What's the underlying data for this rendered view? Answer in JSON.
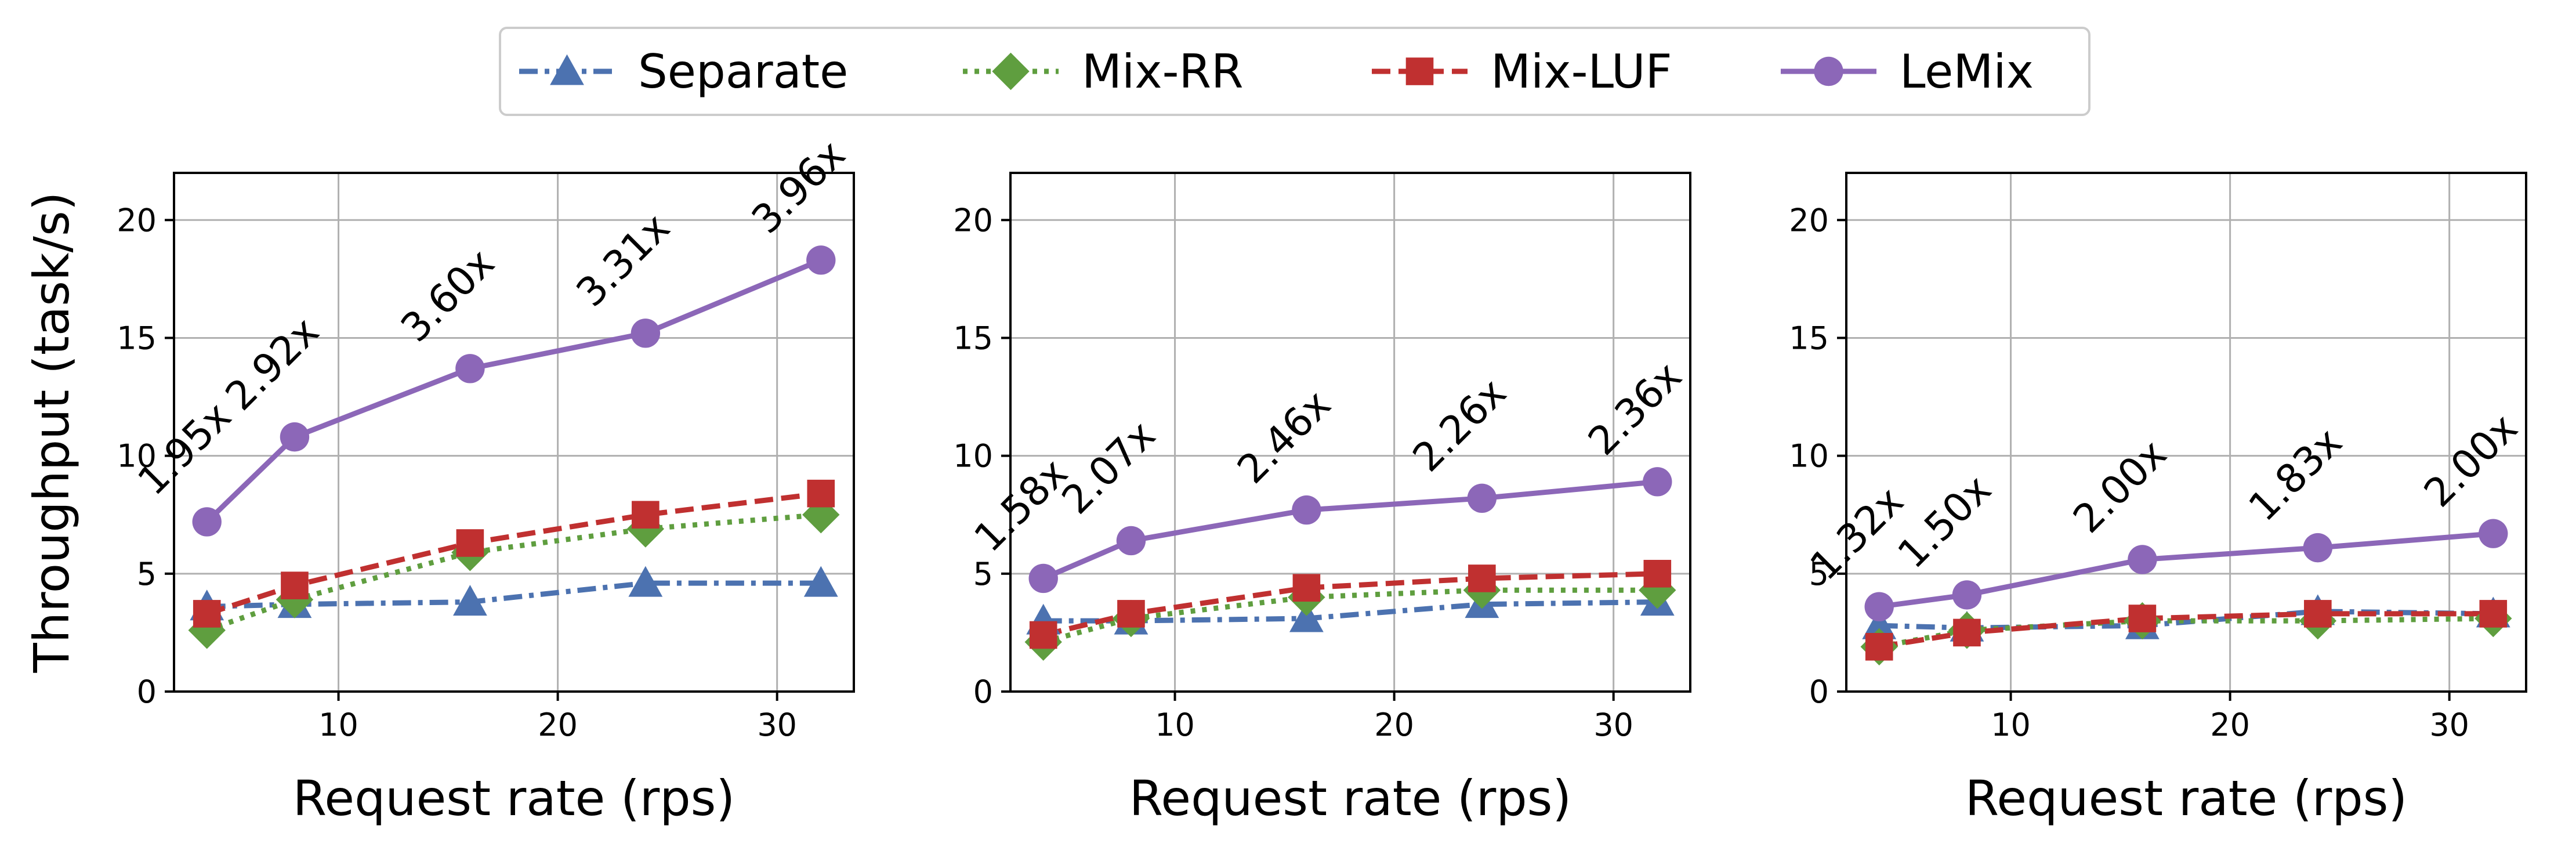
{
  "legend": {
    "entries": [
      {
        "label": "Separate",
        "color": "#4c72b0",
        "marker": "triangle",
        "dash": "dashdot"
      },
      {
        "label": "Mix-RR",
        "color": "#5f9e3f",
        "marker": "diamond",
        "dash": "dotted"
      },
      {
        "label": "Mix-LUF",
        "color": "#c03030",
        "marker": "square",
        "dash": "dashed"
      },
      {
        "label": "LeMix",
        "color": "#8c67b8",
        "marker": "circle",
        "dash": "solid"
      }
    ],
    "placement": "top-center"
  },
  "chart_data": [
    {
      "type": "line",
      "xlabel": "Request rate (rps)",
      "ylabel": "Throughput (task/s)",
      "xlim": [
        2.5,
        33.5
      ],
      "ylim": [
        0,
        22
      ],
      "xticks": [
        10,
        20,
        30
      ],
      "yticks": [
        0,
        5,
        10,
        15,
        20
      ],
      "grid": true,
      "x": [
        4,
        8,
        16,
        24,
        32
      ],
      "series": [
        {
          "name": "Separate",
          "values": [
            3.6,
            3.7,
            3.8,
            4.6,
            4.6
          ]
        },
        {
          "name": "Mix-RR",
          "values": [
            2.6,
            3.9,
            5.9,
            6.9,
            7.5
          ]
        },
        {
          "name": "Mix-LUF",
          "values": [
            3.3,
            4.5,
            6.3,
            7.5,
            8.4
          ]
        },
        {
          "name": "LeMix",
          "values": [
            7.2,
            10.8,
            13.7,
            15.2,
            18.3
          ]
        }
      ],
      "annotations": [
        "1.95x",
        "2.92x",
        "3.60x",
        "3.31x",
        "3.96x"
      ]
    },
    {
      "type": "line",
      "xlabel": "Request rate (rps)",
      "ylabel": "",
      "xlim": [
        2.5,
        33.5
      ],
      "ylim": [
        0,
        22
      ],
      "xticks": [
        10,
        20,
        30
      ],
      "yticks": [
        0,
        5,
        10,
        15,
        20
      ],
      "grid": true,
      "x": [
        4,
        8,
        16,
        24,
        32
      ],
      "series": [
        {
          "name": "Separate",
          "values": [
            3.0,
            3.0,
            3.1,
            3.7,
            3.8
          ]
        },
        {
          "name": "Mix-RR",
          "values": [
            2.1,
            3.1,
            4.0,
            4.3,
            4.3
          ]
        },
        {
          "name": "Mix-LUF",
          "values": [
            2.4,
            3.3,
            4.4,
            4.8,
            5.0
          ]
        },
        {
          "name": "LeMix",
          "values": [
            4.8,
            6.4,
            7.7,
            8.2,
            8.9
          ]
        }
      ],
      "annotations": [
        "1.58x",
        "2.07x",
        "2.46x",
        "2.26x",
        "2.36x"
      ]
    },
    {
      "type": "line",
      "xlabel": "Request rate (rps)",
      "ylabel": "",
      "xlim": [
        2.5,
        33.5
      ],
      "ylim": [
        0,
        22
      ],
      "xticks": [
        10,
        20,
        30
      ],
      "yticks": [
        0,
        5,
        10,
        15,
        20
      ],
      "grid": true,
      "x": [
        4,
        8,
        16,
        24,
        32
      ],
      "series": [
        {
          "name": "Separate",
          "values": [
            2.8,
            2.7,
            2.8,
            3.4,
            3.3
          ]
        },
        {
          "name": "Mix-RR",
          "values": [
            1.9,
            2.6,
            3.0,
            3.0,
            3.1
          ]
        },
        {
          "name": "Mix-LUF",
          "values": [
            1.9,
            2.5,
            3.1,
            3.3,
            3.3
          ]
        },
        {
          "name": "LeMix",
          "values": [
            3.6,
            4.1,
            5.6,
            6.1,
            6.7
          ]
        }
      ],
      "annotations": [
        "1.32x",
        "1.50x",
        "2.00x",
        "1.83x",
        "2.00x"
      ]
    }
  ]
}
